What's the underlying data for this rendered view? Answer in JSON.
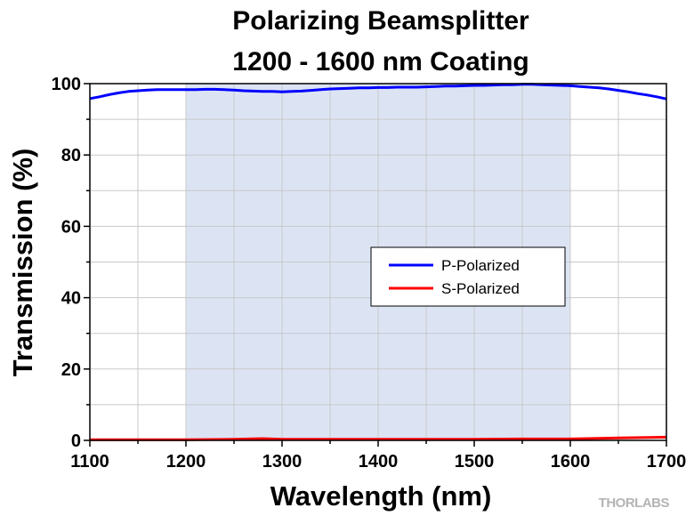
{
  "chart_data": {
    "type": "line",
    "title": [
      "Polarizing Beamsplitter",
      "1200 - 1600 nm Coating"
    ],
    "xlabel": "Wavelength (nm)",
    "ylabel": "Transmission (%)",
    "xlim": [
      1100,
      1700
    ],
    "ylim": [
      0,
      100
    ],
    "x_ticks": [
      1100,
      1200,
      1300,
      1400,
      1500,
      1600,
      1700
    ],
    "y_ticks": [
      0,
      20,
      40,
      60,
      80,
      100
    ],
    "grid": true,
    "shaded_region": {
      "x": [
        1200,
        1600
      ],
      "color": "#dce4f4"
    },
    "legend_position": "center-right",
    "series": [
      {
        "name": "P-Polarized",
        "color": "#0000ff",
        "x": [
          1100,
          1110,
          1120,
          1130,
          1140,
          1150,
          1160,
          1170,
          1180,
          1190,
          1200,
          1210,
          1220,
          1230,
          1240,
          1250,
          1260,
          1270,
          1280,
          1290,
          1300,
          1310,
          1320,
          1330,
          1340,
          1350,
          1360,
          1370,
          1380,
          1390,
          1400,
          1410,
          1420,
          1430,
          1440,
          1450,
          1460,
          1470,
          1480,
          1490,
          1500,
          1510,
          1520,
          1530,
          1540,
          1550,
          1560,
          1570,
          1580,
          1590,
          1600,
          1610,
          1620,
          1630,
          1640,
          1650,
          1660,
          1670,
          1680,
          1690,
          1700
        ],
        "values": [
          95.8,
          96.3,
          96.9,
          97.4,
          97.8,
          98.0,
          98.2,
          98.3,
          98.3,
          98.3,
          98.3,
          98.3,
          98.4,
          98.4,
          98.3,
          98.2,
          98.0,
          97.9,
          97.8,
          97.8,
          97.7,
          97.8,
          97.9,
          98.1,
          98.3,
          98.5,
          98.6,
          98.7,
          98.8,
          98.8,
          98.9,
          98.9,
          99.0,
          99.0,
          99.0,
          99.1,
          99.2,
          99.3,
          99.3,
          99.4,
          99.5,
          99.5,
          99.6,
          99.7,
          99.7,
          99.8,
          99.8,
          99.7,
          99.6,
          99.5,
          99.4,
          99.2,
          99.0,
          98.8,
          98.5,
          98.1,
          97.7,
          97.2,
          96.8,
          96.3,
          95.7
        ]
      },
      {
        "name": "S-Polarized",
        "color": "#ff0000",
        "x": [
          1100,
          1150,
          1200,
          1250,
          1280,
          1300,
          1350,
          1400,
          1450,
          1500,
          1550,
          1600,
          1650,
          1680,
          1700
        ],
        "values": [
          0.2,
          0.2,
          0.2,
          0.3,
          0.5,
          0.3,
          0.3,
          0.3,
          0.3,
          0.3,
          0.4,
          0.4,
          0.7,
          0.8,
          0.9
        ]
      }
    ]
  },
  "watermark": "THORLABS"
}
